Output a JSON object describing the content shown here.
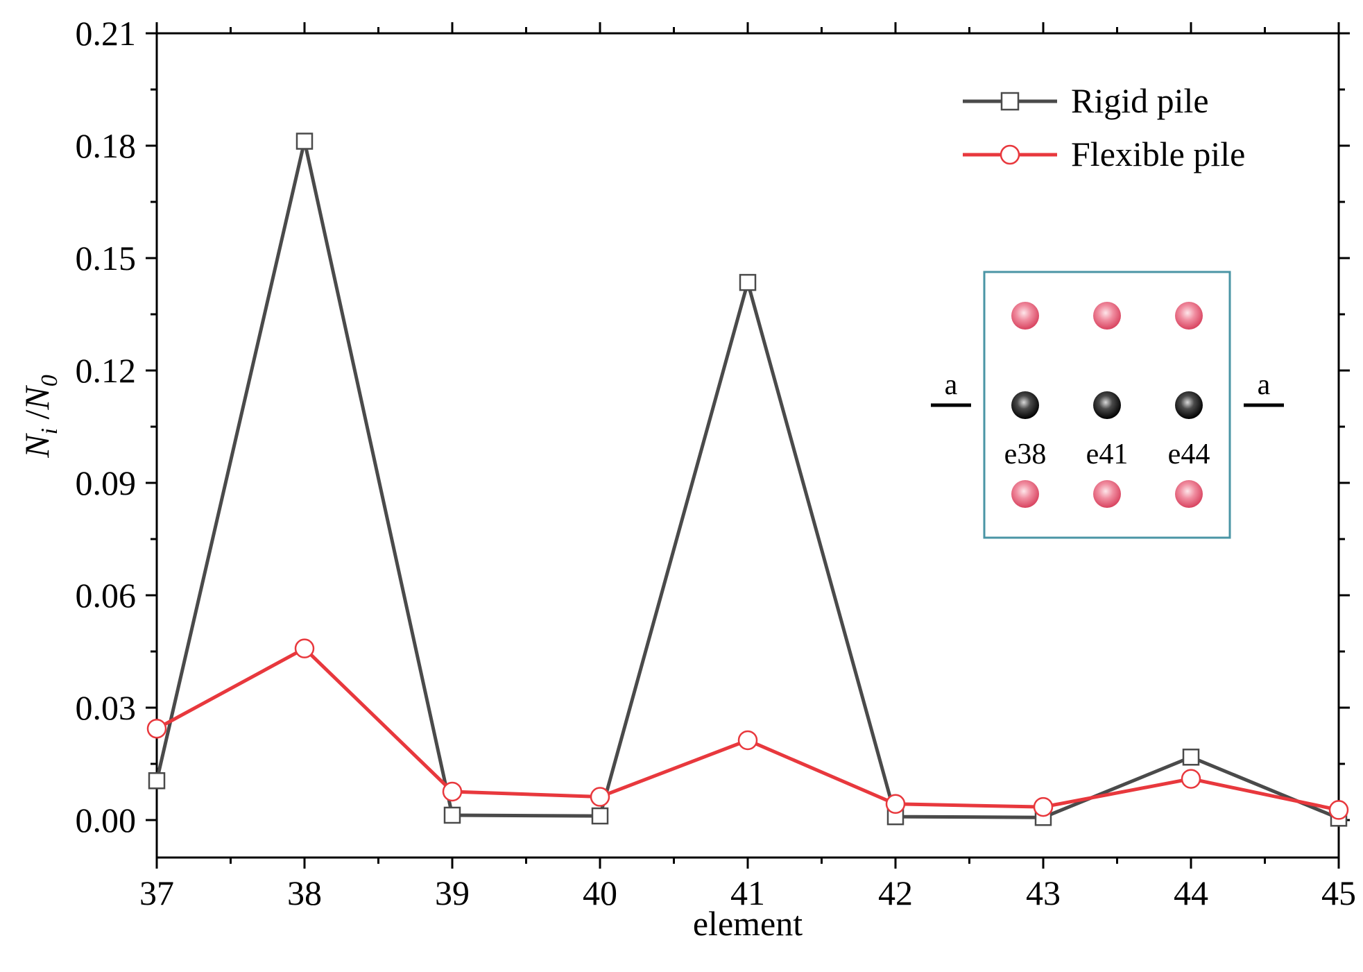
{
  "chart_data": {
    "type": "line",
    "xlabel": "element",
    "ylabel": {
      "n1": "N",
      "s1": "i",
      "sep": " /",
      "n2": "N",
      "s2": "0"
    },
    "xlim": [
      37,
      45
    ],
    "ylim": [
      -0.01,
      0.21
    ],
    "xticks": [
      37,
      38,
      39,
      40,
      41,
      42,
      43,
      44,
      45
    ],
    "xtick_labels": [
      "37",
      "38",
      "39",
      "40",
      "41",
      "42",
      "43",
      "44",
      "45"
    ],
    "yticks": [
      0.0,
      0.03,
      0.06,
      0.09,
      0.12,
      0.15,
      0.18,
      0.21
    ],
    "ytick_labels": [
      "0.00",
      "0.03",
      "0.06",
      "0.09",
      "0.12",
      "0.15",
      "0.18",
      "0.21"
    ],
    "x": [
      37,
      38,
      39,
      40,
      41,
      42,
      43,
      44,
      45
    ],
    "series": [
      {
        "name": "Rigid pile",
        "color": "#4a4a4a",
        "marker": "square",
        "values": [
          0.0105,
          0.1812,
          0.0013,
          0.0011,
          0.1435,
          0.0009,
          0.0007,
          0.0168,
          0.0005
        ]
      },
      {
        "name": "Flexible pile",
        "color": "#e8383d",
        "marker": "circle",
        "values": [
          0.0244,
          0.0458,
          0.0076,
          0.0062,
          0.0213,
          0.0043,
          0.0035,
          0.011,
          0.0027
        ]
      }
    ],
    "legend": {
      "placement": "top-right"
    },
    "grid": false,
    "inset": {
      "section_mark_left": "a",
      "section_mark_right": "a",
      "border_color": "#4a95a5",
      "top_row_color": "#e8607a",
      "middle_row_color": "#111111",
      "bottom_row_color": "#e8607a",
      "element_labels": [
        "e38",
        "e41",
        "e44"
      ]
    }
  }
}
